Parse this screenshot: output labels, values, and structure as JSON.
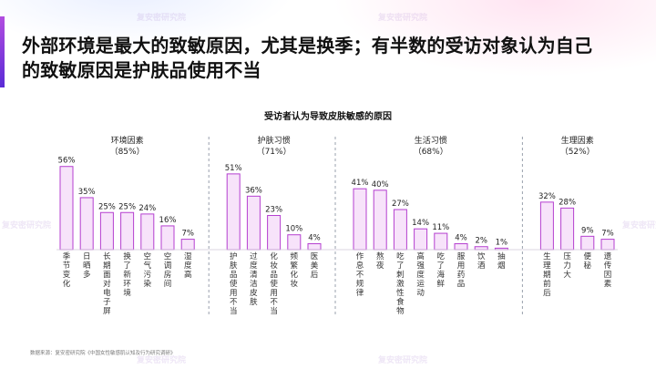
{
  "headline": {
    "line1": "外部环境是最大的致敏原因，尤其是换季；有半数的受访对象认为自己",
    "line2": "的致敏原因是护肤品使用不当"
  },
  "watermark": "复安密研究院",
  "source": "数据来源：复安密研究院《中国女性敏感肌认知及行为研究调研》",
  "colors": {
    "accent": "#8a3fd1",
    "bar_fill": "#f7e3fa",
    "bar_stroke": "#b53fd0",
    "divider": "#9aa0ad"
  },
  "chart_data": {
    "type": "bar",
    "title": "受访者认为导致皮肤敏感的原因",
    "unit": "%",
    "groups": [
      {
        "name": "环境因素",
        "pct_label": "（85%）",
        "categories": [
          "季节变化",
          "日晒多",
          "长期面对电子屏",
          "换了新环境",
          "空气污染",
          "空调房间",
          "湿度高"
        ],
        "values": [
          56,
          35,
          25,
          25,
          24,
          16,
          7
        ]
      },
      {
        "name": "护肤习惯",
        "pct_label": "（71%）",
        "categories": [
          "护肤品使用不当",
          "过度清洁皮肤",
          "化妆品使用不当",
          "频繁化妆",
          "医美后"
        ],
        "values": [
          51,
          36,
          23,
          10,
          4
        ]
      },
      {
        "name": "生活习惯",
        "pct_label": "（68%）",
        "categories": [
          "作息不规律",
          "熬夜",
          "吃了刺激性食物",
          "高强度运动",
          "吃了海鲜",
          "服用药品",
          "饮酒",
          "抽烟"
        ],
        "values": [
          41,
          40,
          27,
          14,
          11,
          4,
          2,
          1
        ]
      },
      {
        "name": "生理因素",
        "pct_label": "（52%）",
        "categories": [
          "生理期前后",
          "压力大",
          "便秘",
          "遗传因素"
        ],
        "values": [
          32,
          28,
          9,
          7
        ]
      }
    ]
  }
}
